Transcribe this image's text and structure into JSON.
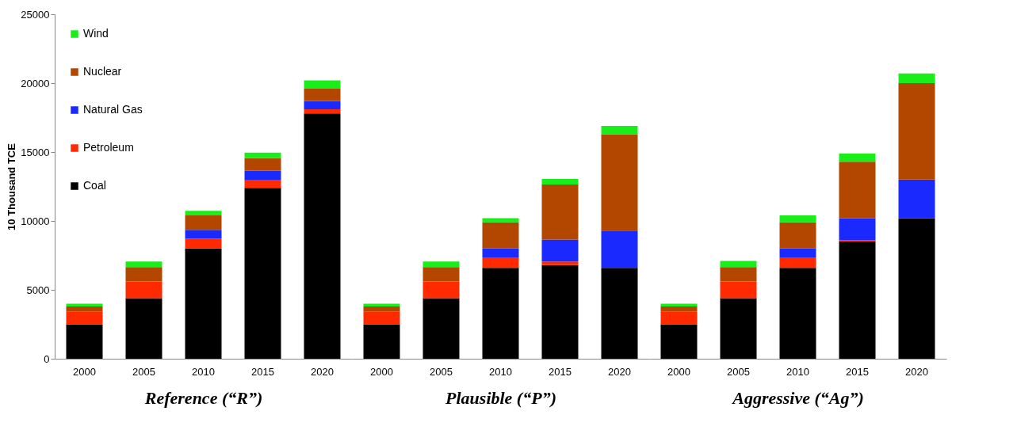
{
  "chart_data": [
    {
      "type": "bar",
      "stacked": true,
      "xlabel": "Reference (“R”)",
      "ylabel": "10 Thousand TCE",
      "categories": [
        "2000",
        "2005",
        "2010",
        "2015",
        "2020"
      ],
      "ylim": [
        0,
        25000
      ],
      "yticks": [
        0,
        5000,
        10000,
        15000,
        20000,
        25000
      ],
      "grid": false,
      "legend": "top left",
      "series": [
        {
          "name": "Coal",
          "color": "#000000",
          "values": [
            2500,
            4400,
            8000,
            12400,
            17800
          ]
        },
        {
          "name": "Petroleum",
          "color": "#ff2a00",
          "values": [
            900,
            1200,
            700,
            550,
            300
          ]
        },
        {
          "name": "Natural Gas",
          "color": "#1a2aff",
          "values": [
            0,
            0,
            650,
            700,
            600
          ]
        },
        {
          "name": "Nuclear",
          "color": "#b34700",
          "values": [
            400,
            1050,
            1050,
            900,
            900
          ]
        },
        {
          "name": "Wind",
          "color": "#1aee1a",
          "values": [
            200,
            400,
            330,
            400,
            600
          ]
        }
      ]
    },
    {
      "type": "bar",
      "stacked": true,
      "xlabel": "Plausible (“P”)",
      "categories": [
        "2000",
        "2005",
        "2010",
        "2015",
        "2020"
      ],
      "ylim": [
        0,
        25000
      ],
      "yticks": [
        0,
        5000,
        10000,
        15000,
        20000,
        25000
      ],
      "grid": false,
      "tick_labels": "x",
      "series": [
        {
          "color": "#000000",
          "values": [
            2500,
            4400,
            6600,
            6800,
            6600
          ]
        },
        {
          "color": "#ff2a00",
          "values": [
            900,
            1200,
            750,
            250,
            0
          ]
        },
        {
          "color": "#1a2aff",
          "values": [
            0,
            0,
            650,
            1600,
            2700
          ]
        },
        {
          "color": "#b34700",
          "values": [
            400,
            1050,
            1900,
            4000,
            7000
          ]
        },
        {
          "color": "#1aee1a",
          "values": [
            200,
            400,
            300,
            400,
            600
          ]
        }
      ]
    },
    {
      "type": "bar",
      "stacked": true,
      "xlabel": "Aggressive (“Ag”)",
      "categories": [
        "2000",
        "2005",
        "2010",
        "2015",
        "2020"
      ],
      "ylim": [
        0,
        25000
      ],
      "yticks": [
        0,
        5000,
        10000,
        15000,
        20000,
        25000
      ],
      "grid": false,
      "tick_labels": "x",
      "series": [
        {
          "color": "#000000",
          "values": [
            2500,
            4400,
            6600,
            8500,
            10200
          ]
        },
        {
          "color": "#ff2a00",
          "values": [
            900,
            1200,
            750,
            100,
            0
          ]
        },
        {
          "color": "#1a2aff",
          "values": [
            0,
            0,
            650,
            1600,
            2800
          ]
        },
        {
          "color": "#b34700",
          "values": [
            400,
            1050,
            1900,
            4100,
            7000
          ]
        },
        {
          "color": "#1aee1a",
          "values": [
            200,
            450,
            500,
            600,
            700
          ]
        }
      ]
    }
  ]
}
